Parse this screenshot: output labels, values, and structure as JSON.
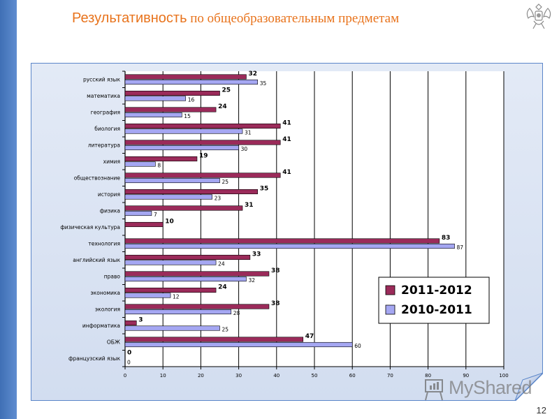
{
  "header": {
    "title_part1": "Результативность",
    "title_part2": " по общеобразовательным предметам"
  },
  "page_number": "12",
  "watermark": {
    "text": "MyShared"
  },
  "colors": {
    "series_2011": "#9b2b5a",
    "series_2010": "#a5a7f2",
    "accent": "#e8731c",
    "band": "#4a7bc0",
    "panel": "#d9e3f3"
  },
  "chart_data": {
    "type": "bar",
    "orientation": "horizontal",
    "categories": [
      "русский язык",
      "математика",
      "география",
      "биология",
      "литература",
      "химия",
      "обществознание",
      "история",
      "физика",
      "физическая культура",
      "технология",
      "английский язык",
      "право",
      "экономика",
      "экология",
      "информатика",
      "ОБЖ",
      "французский язык"
    ],
    "series": [
      {
        "name": "2011-2012",
        "values": [
          32,
          25,
          24,
          41,
          41,
          19,
          41,
          35,
          31,
          10,
          83,
          33,
          38,
          24,
          38,
          3,
          47,
          0
        ],
        "labels": [
          "32",
          "25",
          "24",
          "41",
          "41",
          "19",
          "41",
          "35",
          "31",
          "10",
          "83",
          "33",
          "38",
          "24",
          "38",
          "3",
          "47",
          "0"
        ]
      },
      {
        "name": "2010-2011",
        "values": [
          35,
          16,
          15,
          31,
          30,
          8,
          25,
          23,
          7,
          null,
          87,
          24,
          32,
          12,
          28,
          25,
          60,
          0
        ],
        "labels": [
          "35",
          "16",
          "15",
          "31",
          "30",
          "8",
          "25",
          "23",
          "7",
          "",
          "87",
          "24",
          "32",
          "12",
          "28",
          "25",
          "60",
          "0"
        ]
      }
    ],
    "xlim": [
      0,
      100
    ],
    "xticks": [
      "0",
      "10",
      "20",
      "30",
      "40",
      "50",
      "60",
      "70",
      "80",
      "90",
      "100"
    ],
    "grid": true,
    "legend_position": "bottom-right"
  }
}
